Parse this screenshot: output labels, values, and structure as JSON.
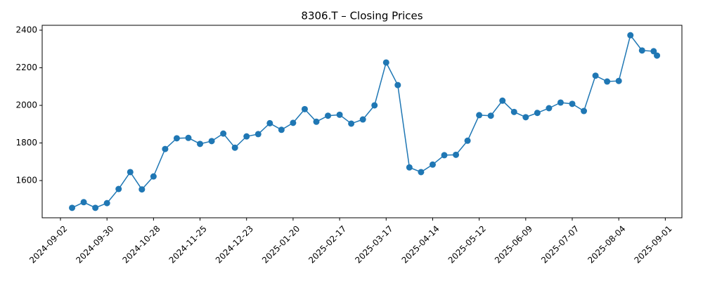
{
  "chart_data": {
    "type": "line",
    "title": "8306.T – Closing Prices",
    "x": [
      "2024-09-09",
      "2024-09-16",
      "2024-09-23",
      "2024-09-30",
      "2024-10-07",
      "2024-10-14",
      "2024-10-21",
      "2024-10-28",
      "2024-11-04",
      "2024-11-11",
      "2024-11-18",
      "2024-11-25",
      "2024-12-02",
      "2024-12-09",
      "2024-12-16",
      "2024-12-23",
      "2024-12-30",
      "2025-01-06",
      "2025-01-13",
      "2025-01-20",
      "2025-01-27",
      "2025-02-03",
      "2025-02-10",
      "2025-02-17",
      "2025-02-24",
      "2025-03-03",
      "2025-03-10",
      "2025-03-17",
      "2025-03-24",
      "2025-03-31",
      "2025-04-07",
      "2025-04-14",
      "2025-04-21",
      "2025-04-28",
      "2025-05-05",
      "2025-05-12",
      "2025-05-19",
      "2025-05-26",
      "2025-06-02",
      "2025-06-09",
      "2025-06-16",
      "2025-06-23",
      "2025-06-30",
      "2025-07-07",
      "2025-07-14",
      "2025-07-21",
      "2025-07-28",
      "2025-08-04",
      "2025-08-11",
      "2025-08-18",
      "2025-08-25",
      "2025-08-27"
    ],
    "values": [
      1455,
      1485,
      1455,
      1480,
      1555,
      1645,
      1553,
      1622,
      1768,
      1825,
      1827,
      1795,
      1810,
      1850,
      1775,
      1835,
      1847,
      1905,
      1870,
      1907,
      1980,
      1913,
      1945,
      1950,
      1903,
      1925,
      2000,
      2228,
      2108,
      1670,
      1645,
      1685,
      1735,
      1737,
      1812,
      1948,
      1945,
      2025,
      1965,
      1937,
      1960,
      1985,
      2015,
      2008,
      1970,
      2158,
      2127,
      2130,
      2373,
      2292,
      2288,
      2265
    ],
    "color": "#1f77b4",
    "xlim": [
      "2024-08-22",
      "2025-09-11"
    ],
    "xticks": [
      "2024-09-02",
      "2024-09-30",
      "2024-10-28",
      "2024-11-25",
      "2024-12-23",
      "2025-01-20",
      "2025-02-17",
      "2025-03-17",
      "2025-04-14",
      "2025-05-12",
      "2025-06-09",
      "2025-07-07",
      "2025-08-04",
      "2025-09-01"
    ],
    "ylim": [
      1402,
      2426
    ],
    "yticks": [
      1600,
      1800,
      2000,
      2200,
      2400
    ]
  }
}
